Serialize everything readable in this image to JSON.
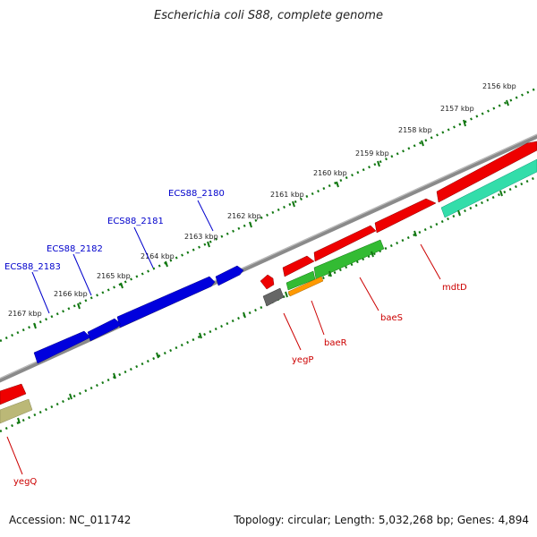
{
  "title": "Escherichia coli S88, complete genome",
  "footer": {
    "accession": "Accession: NC_011742",
    "summary": "Topology: circular; Length: 5,032,268 bp; Genes: 4,894"
  },
  "scale_labels": [
    "2156 kbp",
    "2157 kbp",
    "2158 kbp",
    "2159 kbp",
    "2160 kbp",
    "2161 kbp",
    "2162 kbp",
    "2163 kbp",
    "2164 kbp",
    "2165 kbp",
    "2166 kbp",
    "2167 kbp"
  ],
  "genes": [
    {
      "label": "ECS88_2180",
      "strand": "minus",
      "color": "#0000dd"
    },
    {
      "label": "ECS88_2181",
      "strand": "minus",
      "color": "#0000dd"
    },
    {
      "label": "ECS88_2182",
      "strand": "minus",
      "color": "#0000dd"
    },
    {
      "label": "ECS88_2183",
      "strand": "minus",
      "color": "#0000dd"
    },
    {
      "label": "mdtD",
      "strand": "plus",
      "color": "#ee0000"
    },
    {
      "label": "baeS",
      "strand": "plus",
      "color": "#ee0000"
    },
    {
      "label": "baeR",
      "strand": "plus",
      "color": "#ee0000"
    },
    {
      "label": "yegP",
      "strand": "plus",
      "color": "#ee0000"
    },
    {
      "label": "yegQ",
      "strand": "plus",
      "color": "#ee0000"
    }
  ],
  "colors": {
    "backbone": "#8a8a8a",
    "tick_dots": "#117711",
    "cds_minus": "#0000dd",
    "cds_plus": "#ee0000",
    "feature_green": "#33bb33",
    "feature_teal": "#33ddaa",
    "feature_orange": "#ff9900",
    "feature_olive": "#bbb877",
    "feature_gray": "#666666"
  }
}
